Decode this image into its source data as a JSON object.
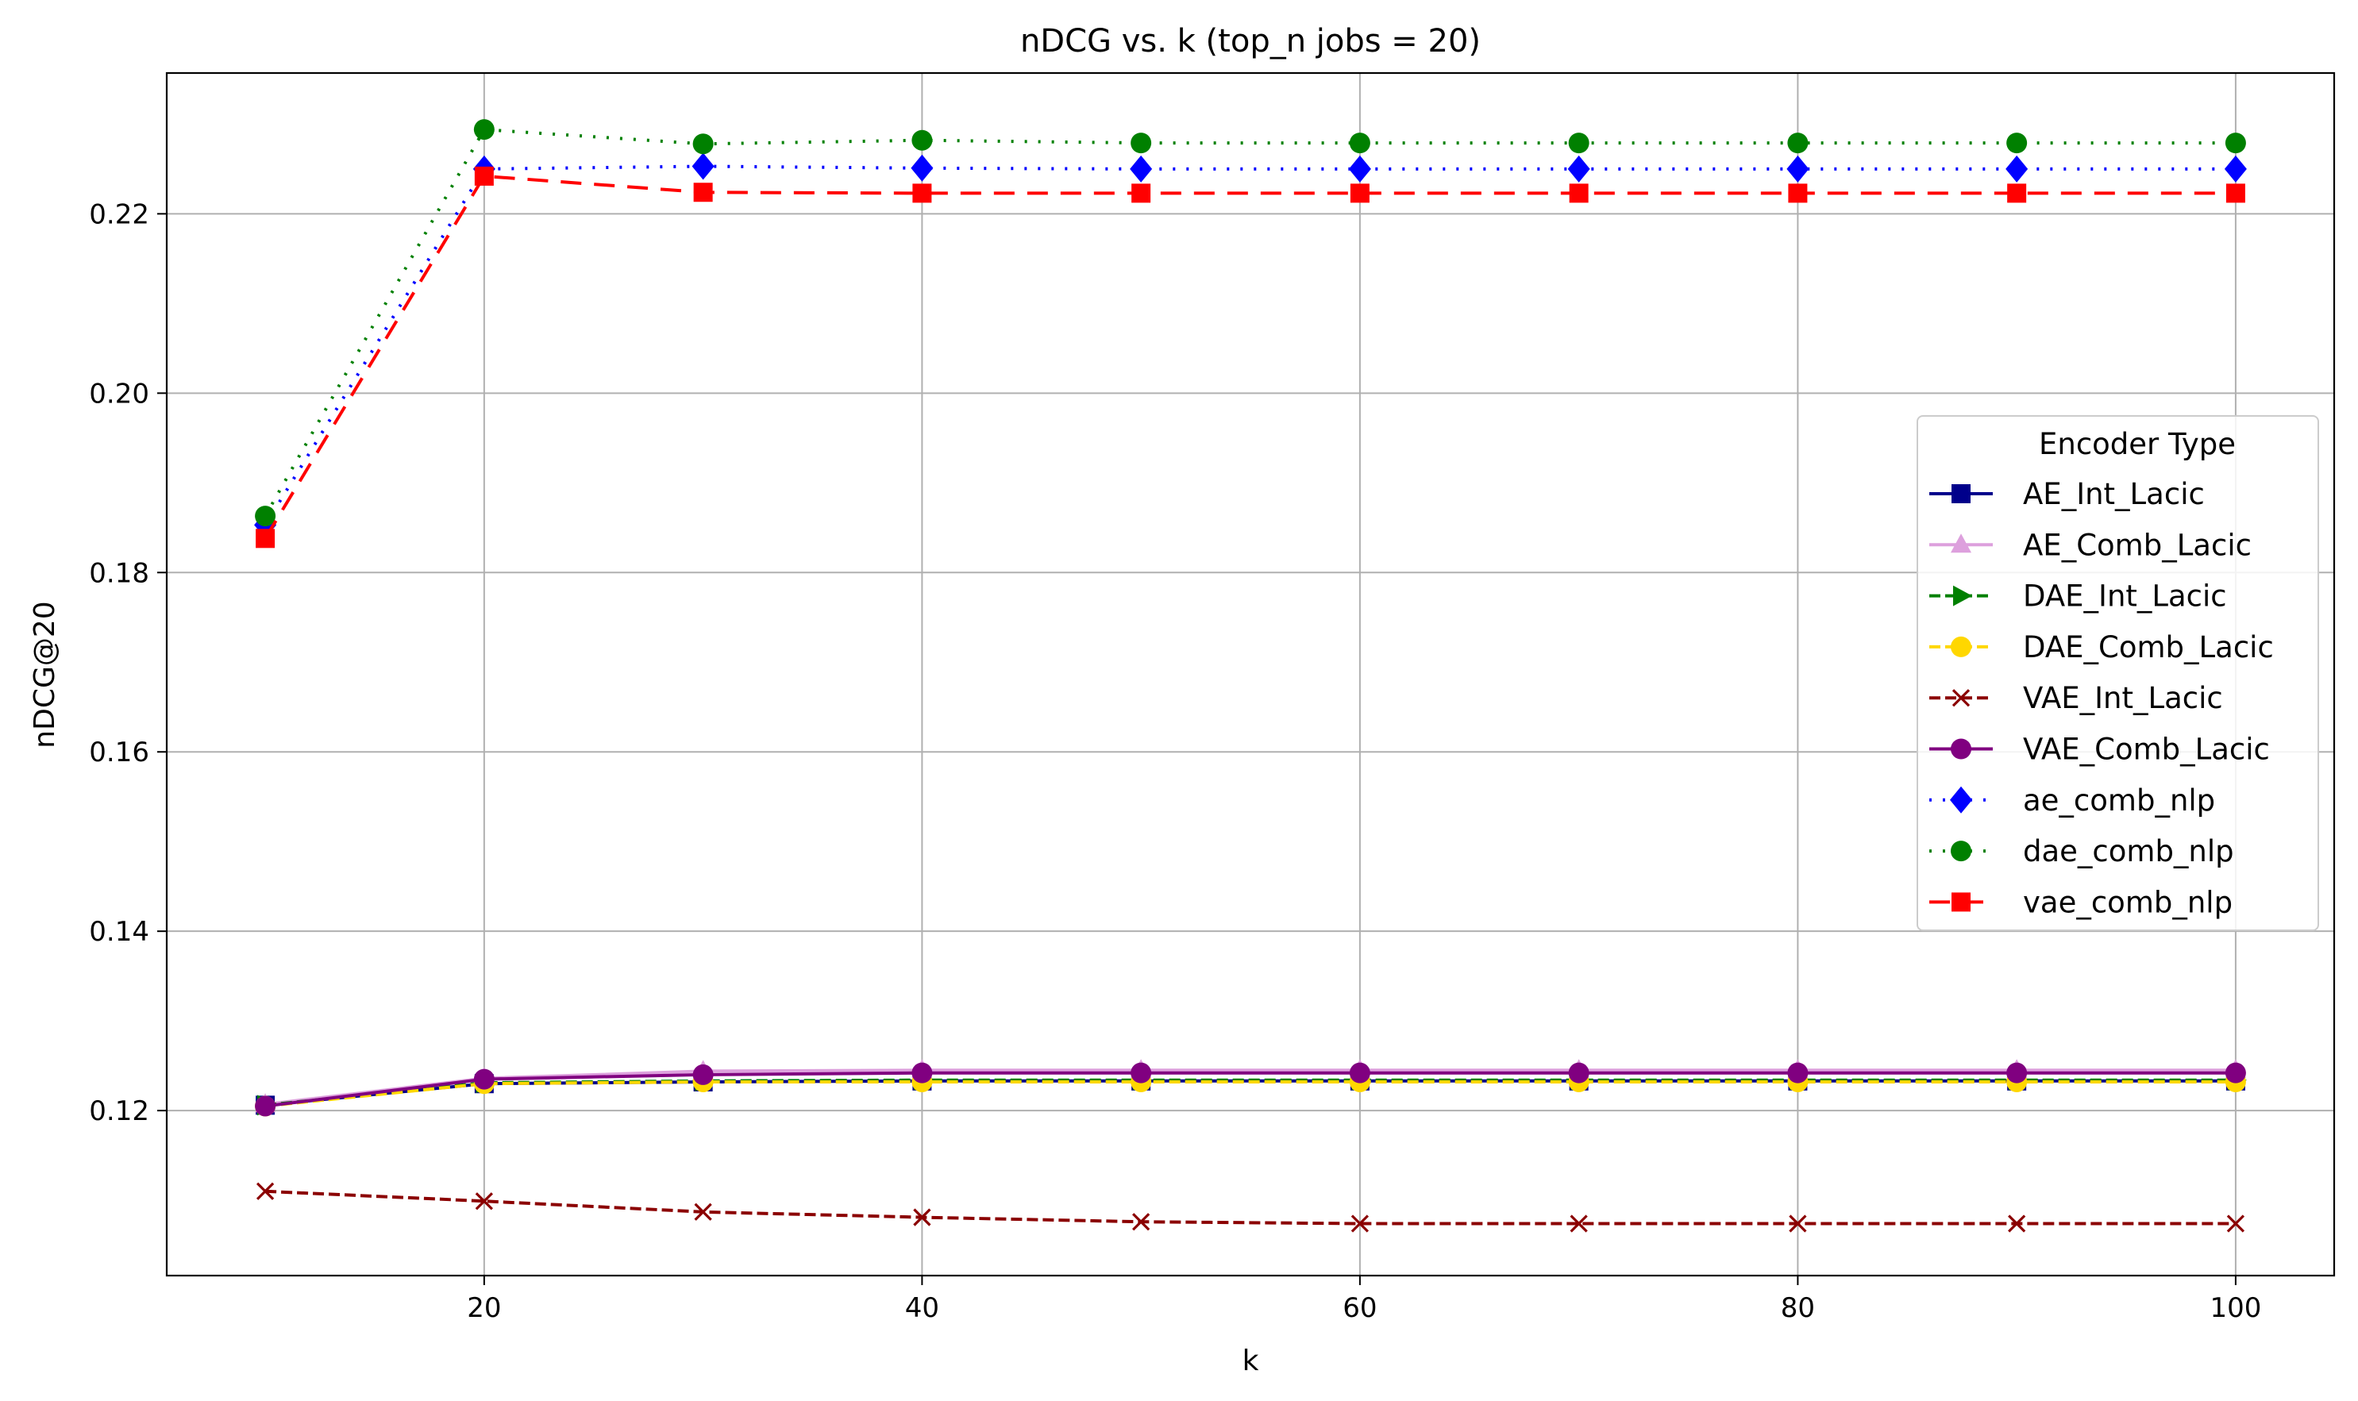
{
  "chart_data": {
    "type": "line",
    "title": "nDCG vs. k (top_n jobs = 20)",
    "xlabel": "k",
    "ylabel": "nDCG@20",
    "xlim": [
      5.5,
      104.5
    ],
    "ylim": [
      0.1016,
      0.2357
    ],
    "xticks": [
      20,
      40,
      60,
      80,
      100
    ],
    "yticks": [
      0.12,
      0.14,
      0.16,
      0.18,
      0.2,
      0.22
    ],
    "ytick_labels": [
      "0.12",
      "0.14",
      "0.16",
      "0.18",
      "0.20",
      "0.22"
    ],
    "grid": true,
    "legend_title": "Encoder Type",
    "legend_position": "center-right",
    "x": [
      10,
      20,
      30,
      40,
      50,
      60,
      70,
      80,
      90,
      100
    ],
    "series": [
      {
        "name": "AE_Int_Lacic",
        "color": "#00008b",
        "marker": "square",
        "dash": "solid",
        "values": [
          0.1206,
          0.123,
          0.1232,
          0.1233,
          0.1233,
          0.1233,
          0.1233,
          0.1233,
          0.1233,
          0.1233
        ]
      },
      {
        "name": "AE_Comb_Lacic",
        "color": "#dda0dd",
        "marker": "triangle",
        "dash": "solid",
        "values": [
          0.1207,
          0.1236,
          0.1244,
          0.1245,
          0.1245,
          0.1245,
          0.1245,
          0.1245,
          0.1245,
          0.1245
        ]
      },
      {
        "name": "DAE_Int_Lacic",
        "color": "#008000",
        "marker": "triangle-right",
        "dash": "dashed",
        "values": [
          0.1206,
          0.1231,
          0.1233,
          0.1234,
          0.1234,
          0.1234,
          0.1234,
          0.1234,
          0.1234,
          0.1234
        ]
      },
      {
        "name": "DAE_Comb_Lacic",
        "color": "#ffd700",
        "marker": "circle",
        "dash": "dashed",
        "values": [
          0.1205,
          0.123,
          0.1232,
          0.1232,
          0.1232,
          0.1232,
          0.1232,
          0.1232,
          0.1232,
          0.1232
        ]
      },
      {
        "name": "VAE_Int_Lacic",
        "color": "#8b0000",
        "marker": "x",
        "dash": "dashed",
        "values": [
          0.111,
          0.1099,
          0.1087,
          0.1081,
          0.1076,
          0.1074,
          0.1074,
          0.1074,
          0.1074,
          0.1074
        ]
      },
      {
        "name": "VAE_Comb_Lacic",
        "color": "#800080",
        "marker": "circle",
        "dash": "solid",
        "values": [
          0.1205,
          0.1235,
          0.124,
          0.1242,
          0.1242,
          0.1242,
          0.1242,
          0.1242,
          0.1242,
          0.1242
        ]
      },
      {
        "name": "ae_comb_nlp",
        "color": "#0000ff",
        "marker": "diamond",
        "dash": "dotted",
        "values": [
          0.1853,
          0.225,
          0.2253,
          0.2251,
          0.225,
          0.225,
          0.225,
          0.225,
          0.225,
          0.225
        ]
      },
      {
        "name": "dae_comb_nlp",
        "color": "#008000",
        "marker": "circle",
        "dash": "dotted",
        "values": [
          0.1863,
          0.2294,
          0.2278,
          0.2282,
          0.2279,
          0.2279,
          0.2279,
          0.2279,
          0.2279,
          0.2279
        ]
      },
      {
        "name": "vae_comb_nlp",
        "color": "#ff0000",
        "marker": "square",
        "dash": "longdash",
        "values": [
          0.1838,
          0.2242,
          0.2224,
          0.2223,
          0.2223,
          0.2223,
          0.2223,
          0.2223,
          0.2223,
          0.2223
        ]
      }
    ]
  }
}
